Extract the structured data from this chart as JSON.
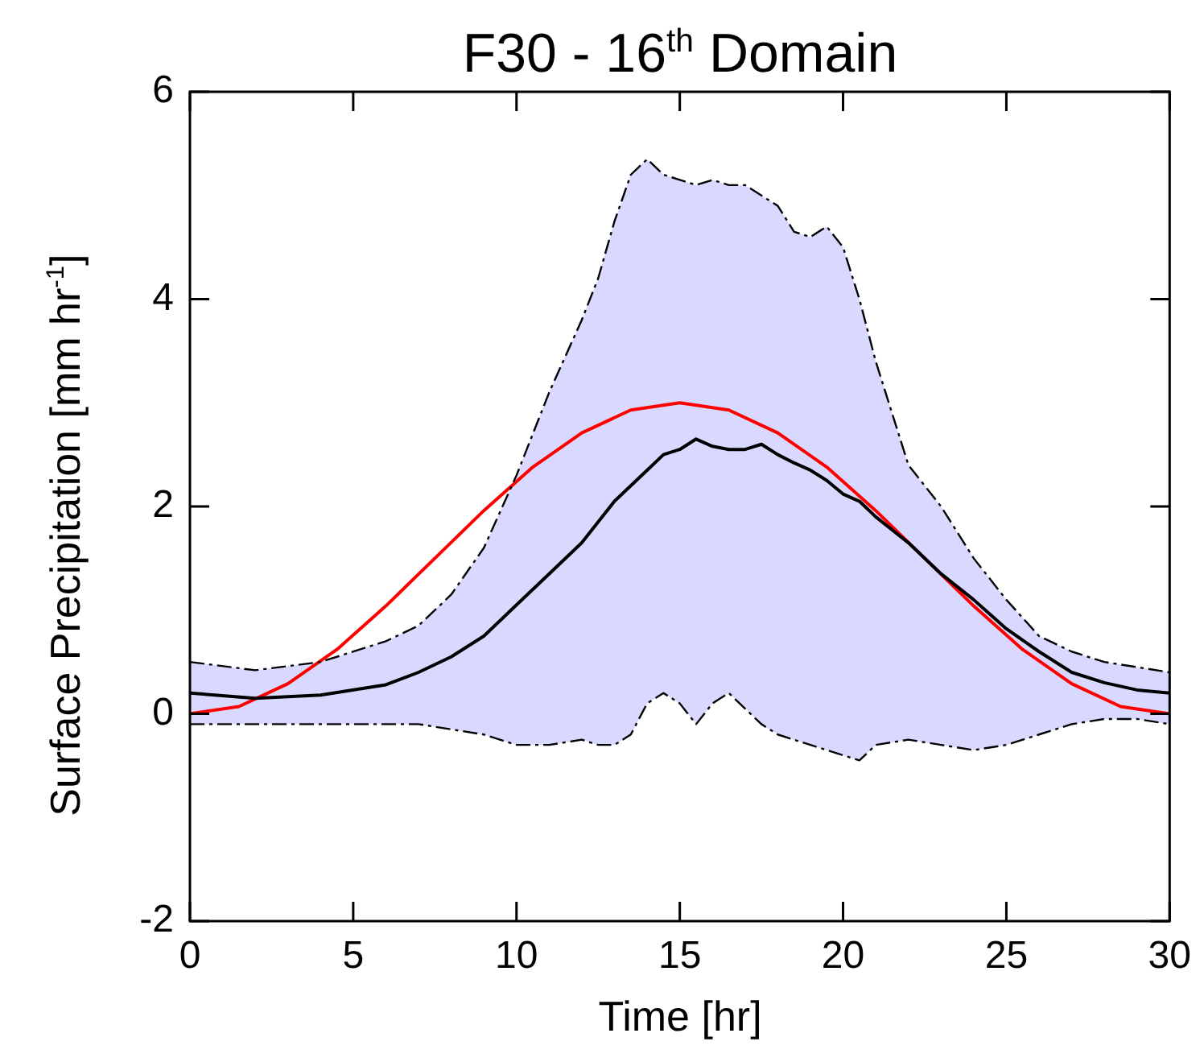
{
  "chart_data": {
    "type": "line",
    "title": "F30 - 16$^{th}$ Domain",
    "xlabel": "Time [hr]",
    "ylabel": "Surface Precipitation [mm hr$^{-1}$]",
    "xlim": [
      0,
      30
    ],
    "xticks": [
      0,
      5,
      10,
      15,
      20,
      25,
      30
    ],
    "ylim": [
      -2,
      6
    ],
    "yticks": [
      -2,
      0,
      2,
      4,
      6
    ],
    "grid": false,
    "legend": false,
    "marker": "none",
    "line_style": "solid",
    "series": [
      {
        "color": "#000000",
        "x": [
          0,
          2,
          4,
          6,
          7,
          8,
          9,
          10,
          11,
          12,
          12.5,
          13,
          13.5,
          14,
          14.5,
          15,
          15.5,
          16,
          16.5,
          17,
          17.5,
          18,
          18.5,
          19,
          19.5,
          20,
          20.5,
          21,
          22,
          23,
          24,
          25,
          26,
          27,
          28,
          29,
          30
        ],
        "values": [
          0.2,
          0.15,
          0.18,
          0.28,
          0.4,
          0.55,
          0.75,
          1.05,
          1.35,
          1.65,
          1.85,
          2.05,
          2.2,
          2.35,
          2.5,
          2.55,
          2.65,
          2.58,
          2.55,
          2.55,
          2.6,
          2.5,
          2.42,
          2.35,
          2.25,
          2.12,
          2.05,
          1.9,
          1.65,
          1.35,
          1.1,
          0.82,
          0.6,
          0.4,
          0.3,
          0.23,
          0.2
        ],
        "lower": [
          -0.1,
          -0.1,
          -0.1,
          -0.1,
          -0.1,
          -0.15,
          -0.2,
          -0.3,
          -0.3,
          -0.25,
          -0.3,
          -0.3,
          -0.2,
          0.1,
          0.2,
          0.1,
          -0.1,
          0.1,
          0.2,
          0.05,
          -0.1,
          -0.2,
          -0.25,
          -0.3,
          -0.35,
          -0.4,
          -0.45,
          -0.3,
          -0.25,
          -0.3,
          -0.35,
          -0.3,
          -0.2,
          -0.1,
          -0.05,
          -0.05,
          -0.1
        ],
        "upper": [
          0.5,
          0.42,
          0.5,
          0.7,
          0.85,
          1.15,
          1.6,
          2.3,
          3.1,
          3.8,
          4.2,
          4.75,
          5.2,
          5.35,
          5.2,
          5.15,
          5.1,
          5.15,
          5.1,
          5.1,
          5.0,
          4.9,
          4.65,
          4.6,
          4.7,
          4.5,
          4.0,
          3.4,
          2.4,
          2.0,
          1.5,
          1.1,
          0.75,
          0.6,
          0.5,
          0.45,
          0.4
        ]
      },
      {
        "color": "#000000",
        "line_style": "dashed",
        "x": [
          0,
          2,
          4,
          6,
          7,
          8,
          9,
          10,
          11,
          12,
          12.5,
          13,
          13.5,
          14,
          14.5,
          15,
          15.5,
          16,
          16.5,
          17,
          17.5,
          18,
          18.5,
          19,
          19.5,
          20,
          20.5,
          21,
          22,
          23,
          24,
          25,
          26,
          27,
          28,
          29,
          30
        ],
        "values": [
          -0.1,
          -0.1,
          -0.1,
          -0.1,
          -0.1,
          -0.15,
          -0.2,
          -0.3,
          -0.3,
          -0.25,
          -0.3,
          -0.3,
          -0.2,
          0.1,
          0.2,
          0.1,
          -0.1,
          0.1,
          0.2,
          0.05,
          -0.1,
          -0.2,
          -0.25,
          -0.3,
          -0.35,
          -0.4,
          -0.45,
          -0.3,
          -0.25,
          -0.3,
          -0.35,
          -0.3,
          -0.2,
          -0.1,
          -0.05,
          -0.05,
          -0.1
        ]
      },
      {
        "color": "#000000",
        "line_style": "dashed",
        "x": [
          0,
          2,
          4,
          6,
          7,
          8,
          9,
          10,
          11,
          12,
          12.5,
          13,
          13.5,
          14,
          14.5,
          15,
          15.5,
          16,
          16.5,
          17,
          17.5,
          18,
          18.5,
          19,
          19.5,
          20,
          20.5,
          21,
          22,
          23,
          24,
          25,
          26,
          27,
          28,
          29,
          30
        ],
        "values": [
          0.5,
          0.42,
          0.5,
          0.7,
          0.85,
          1.15,
          1.6,
          2.3,
          3.1,
          3.8,
          4.2,
          4.75,
          5.2,
          5.35,
          5.2,
          5.15,
          5.1,
          5.15,
          5.1,
          5.1,
          5.0,
          4.9,
          4.65,
          4.6,
          4.7,
          4.5,
          4.0,
          3.4,
          2.4,
          2.0,
          1.5,
          1.1,
          0.75,
          0.6,
          0.5,
          0.45,
          0.4
        ]
      },
      {
        "color": "#ff0000",
        "x": [
          0,
          1.5,
          3,
          4.5,
          6,
          7.5,
          9,
          10.5,
          12,
          13.5,
          15,
          16.5,
          18,
          19.5,
          21,
          22.5,
          24,
          25.5,
          27,
          28.5,
          30
        ],
        "values": [
          0,
          0.07,
          0.29,
          0.62,
          1.04,
          1.5,
          1.96,
          2.38,
          2.71,
          2.93,
          3,
          2.93,
          2.71,
          2.38,
          1.96,
          1.5,
          1.04,
          0.62,
          0.29,
          0.07,
          0
        ]
      }
    ]
  }
}
